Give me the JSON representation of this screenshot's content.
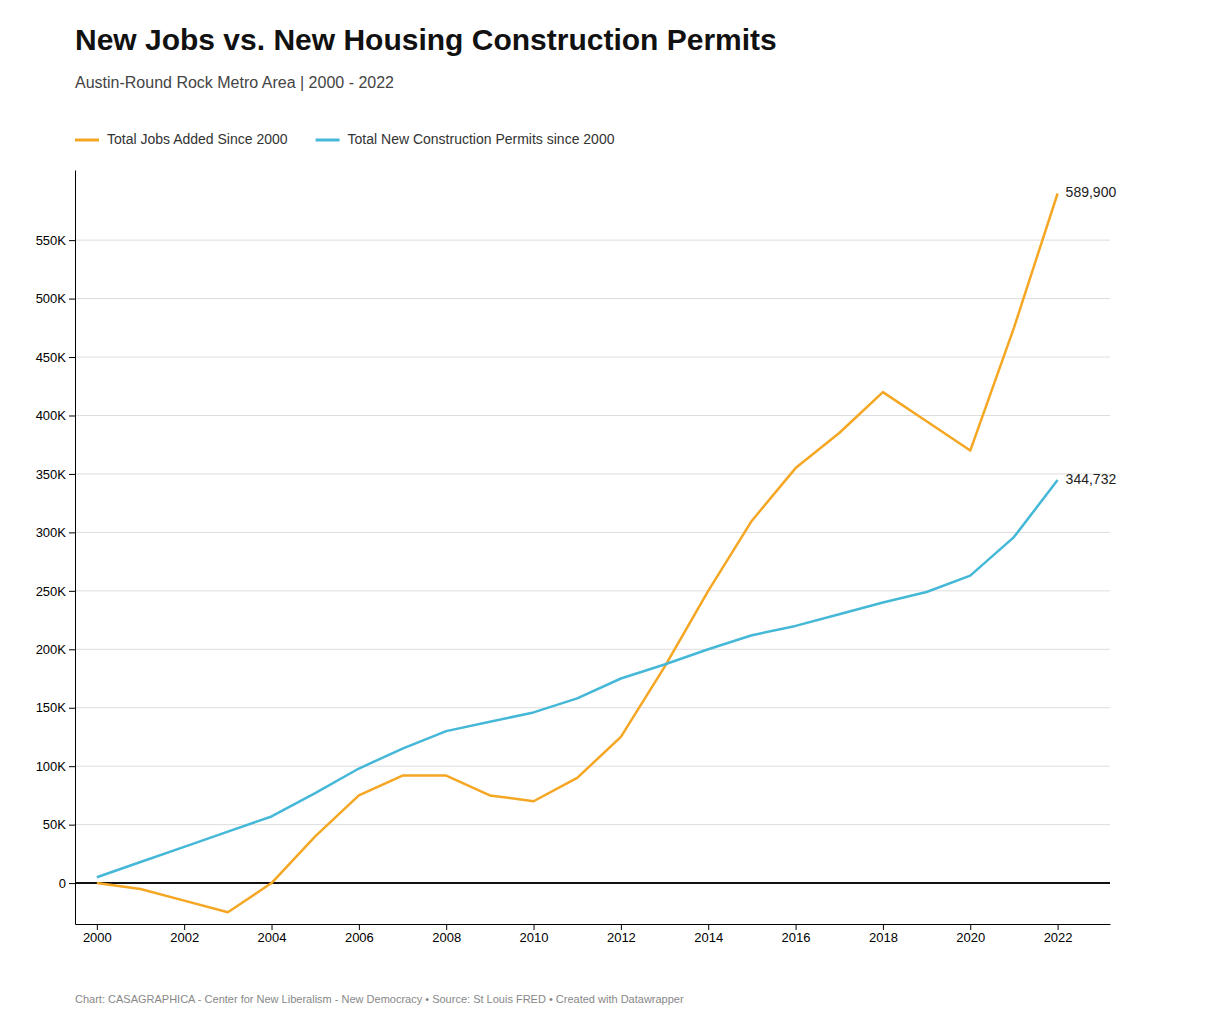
{
  "chart_data": {
    "type": "line",
    "title": "New Jobs vs. New Housing Construction Permits",
    "subtitle": "Austin-Round Rock Metro Area | 2000 - 2022",
    "footer": "Chart: CASAGRAPHICA - Center for New Liberalism - New Democracy • Source: St Louis FRED • Created with Datawrapper",
    "x": [
      2000,
      2001,
      2002,
      2003,
      2004,
      2005,
      2006,
      2007,
      2008,
      2009,
      2010,
      2011,
      2012,
      2013,
      2014,
      2015,
      2016,
      2017,
      2018,
      2019,
      2020,
      2021,
      2022
    ],
    "series": [
      {
        "name": "Total Jobs Added Since 2000",
        "color": "#f5a623",
        "values": [
          0,
          -5000,
          -15000,
          -25000,
          0,
          40000,
          75000,
          92000,
          92000,
          75000,
          70000,
          90000,
          125000,
          185000,
          250000,
          310000,
          355000,
          385000,
          420000,
          395000,
          370000,
          475000,
          589900
        ]
      },
      {
        "name": "Total New Construction Permits since 2000",
        "color": "#45b8d8",
        "values": [
          5000,
          18000,
          31000,
          44000,
          57000,
          77000,
          98000,
          115000,
          130000,
          138000,
          146000,
          158000,
          175000,
          187000,
          200000,
          212000,
          220000,
          230000,
          240000,
          249000,
          263000,
          296000,
          344732
        ]
      }
    ],
    "annotations": [
      {
        "text": "589,900",
        "x": 2022,
        "y": 589900
      },
      {
        "text": "344,732",
        "x": 2022,
        "y": 344732
      }
    ],
    "xlim": [
      1999.5,
      2023.2
    ],
    "xticks": [
      2000,
      2002,
      2004,
      2006,
      2008,
      2010,
      2012,
      2014,
      2016,
      2018,
      2020,
      2022
    ],
    "ylim": [
      -35000,
      610000
    ],
    "yticks": [
      0,
      {
        "value": 50000,
        "label": "50K"
      },
      {
        "value": 100000,
        "label": "100K"
      },
      {
        "value": 150000,
        "label": "150K"
      },
      {
        "value": 200000,
        "label": "200K"
      },
      {
        "value": 250000,
        "label": "250K"
      },
      {
        "value": 300000,
        "label": "300K"
      },
      {
        "value": 350000,
        "label": "350K"
      },
      {
        "value": 400000,
        "label": "400K"
      },
      {
        "value": 450000,
        "label": "450K"
      },
      {
        "value": 500000,
        "label": "500K"
      },
      {
        "value": 550000,
        "label": "550K"
      }
    ],
    "grid": true,
    "legend": "top-left"
  }
}
